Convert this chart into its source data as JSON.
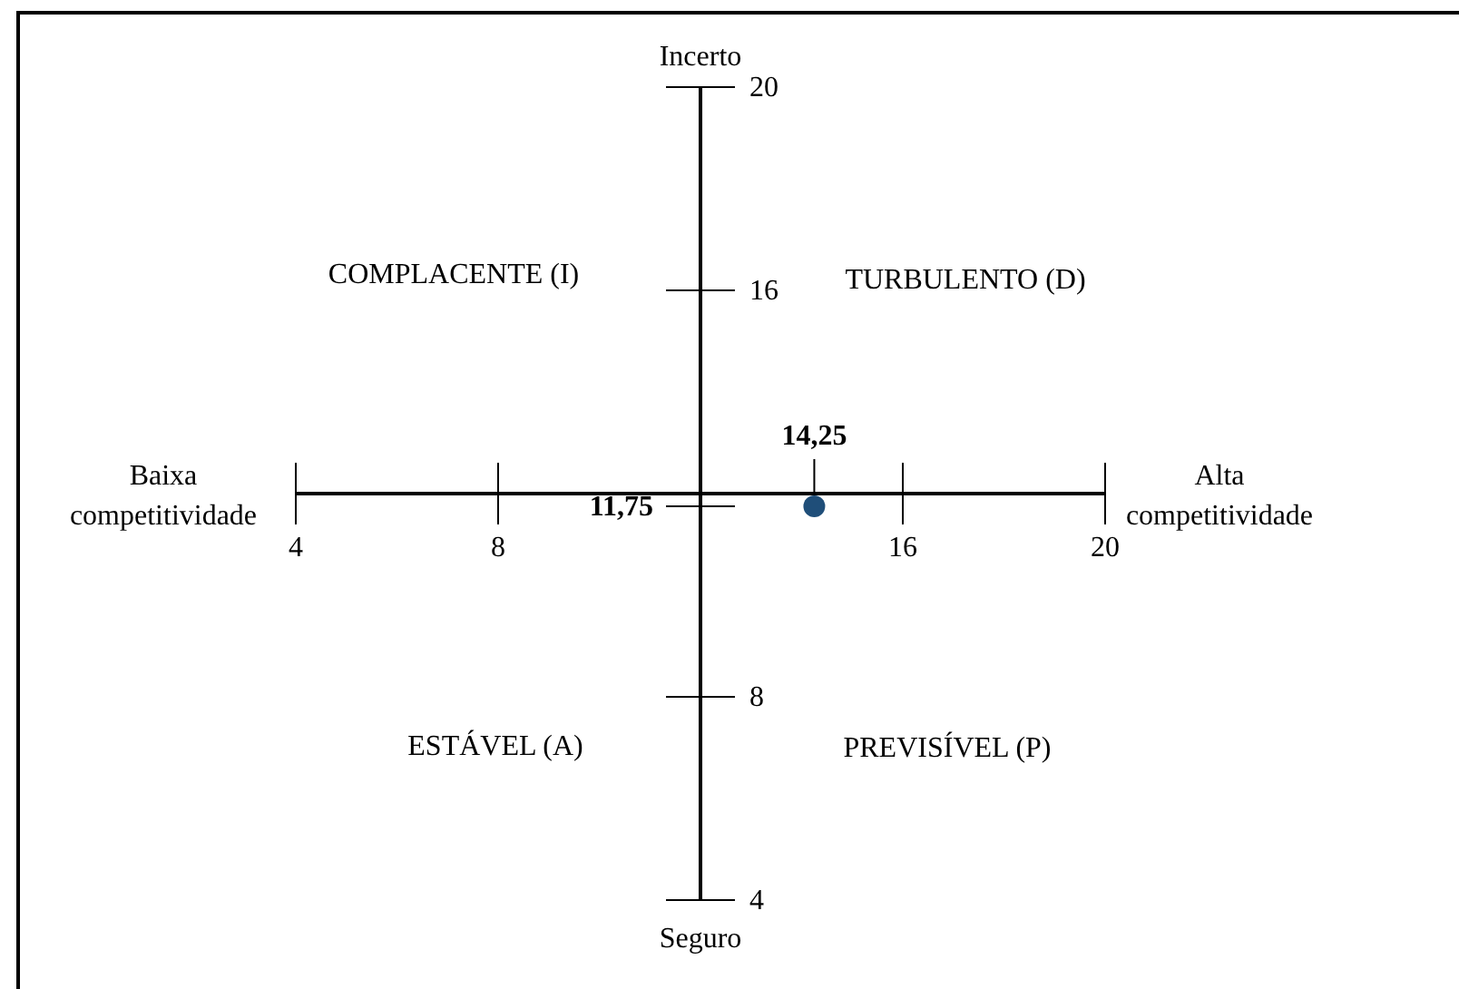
{
  "chart_data": {
    "type": "scatter",
    "x": [
      14.25
    ],
    "values": [
      11.75
    ],
    "color": "#1f4e79",
    "marker": "circle",
    "xlim": [
      4,
      20
    ],
    "ylim": [
      4,
      20
    ],
    "xticks": [
      4,
      8,
      16,
      20
    ],
    "yticks": [
      4,
      8,
      16,
      20
    ],
    "annotations": [
      "Incerto",
      "Seguro",
      "Baixa competitividade",
      "Alta competitividade",
      "COMPLACENTE (I)",
      "TURBULENTO (D)",
      "ESTÁVEL (A)",
      "PREVISÍVEL (P)",
      "14,25",
      "11,75"
    ]
  }
}
